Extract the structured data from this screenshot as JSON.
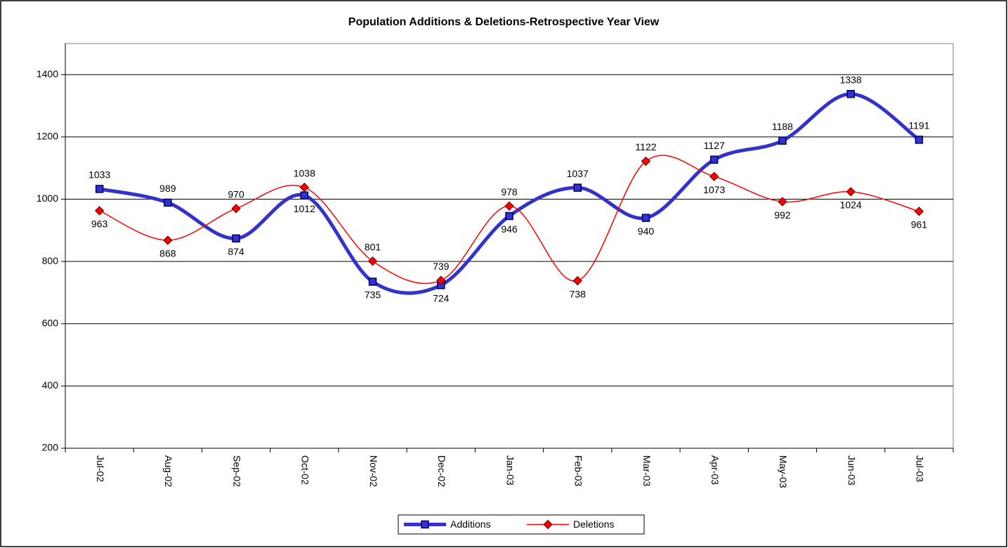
{
  "chart_data": {
    "type": "line",
    "title": "Population Additions & Deletions-Retrospective Year View",
    "categories": [
      "Jul-02",
      "Aug-02",
      "Sep-02",
      "Oct-02",
      "Nov-02",
      "Dec-02",
      "Jan-03",
      "Feb-03",
      "Mar-03",
      "Apr-03",
      "May-03",
      "Jun-03",
      "Jul-03"
    ],
    "series": [
      {
        "name": "Additions",
        "color": "#3333cc",
        "values": [
          1033,
          989,
          874,
          1012,
          735,
          724,
          946,
          1037,
          940,
          1127,
          1188,
          1338,
          1191
        ]
      },
      {
        "name": "Deletions",
        "color": "#ff0000",
        "values": [
          963,
          868,
          970,
          1038,
          801,
          739,
          978,
          738,
          1122,
          1073,
          992,
          1024,
          961
        ]
      }
    ],
    "ylim": [
      200,
      1500
    ],
    "yticks": [
      200,
      400,
      600,
      800,
      1000,
      1200,
      1400
    ],
    "grid": true,
    "legend": "bottom"
  }
}
